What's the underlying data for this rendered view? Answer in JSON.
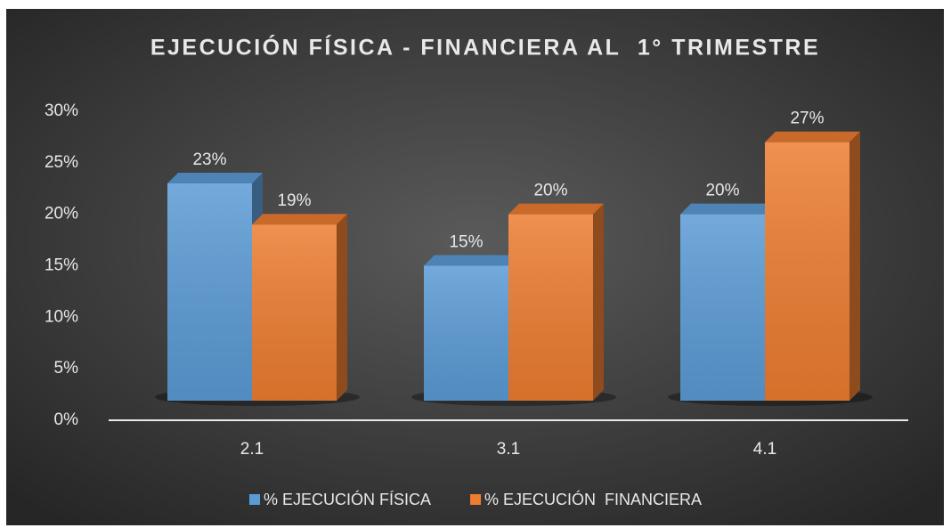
{
  "chart_data": {
    "type": "bar3d",
    "title": "EJECUCIÓN FÍSICA - FINANCIERA AL  1° TRIMESTRE",
    "categories": [
      "2.1",
      "3.1",
      "4.1"
    ],
    "series": [
      {
        "name": "% EJECUCIÓN FÍSICA",
        "color": "#5b9bd5",
        "values": [
          23,
          15,
          20
        ],
        "value_labels": [
          "23%",
          "15%",
          "20%"
        ]
      },
      {
        "name": "% EJECUCIÓN  FINANCIERA",
        "color": "#ed7d31",
        "values": [
          19,
          20,
          27
        ],
        "value_labels": [
          "19%",
          "20%",
          "27%"
        ]
      }
    ],
    "ylim": [
      0,
      30
    ],
    "yticks": [
      {
        "value": 0,
        "label": "0%"
      },
      {
        "value": 5,
        "label": "5%"
      },
      {
        "value": 10,
        "label": "10%"
      },
      {
        "value": 15,
        "label": "15%"
      },
      {
        "value": 20,
        "label": "20%"
      },
      {
        "value": 25,
        "label": "25%"
      },
      {
        "value": 30,
        "label": "30%"
      }
    ],
    "legend": "bottom"
  }
}
